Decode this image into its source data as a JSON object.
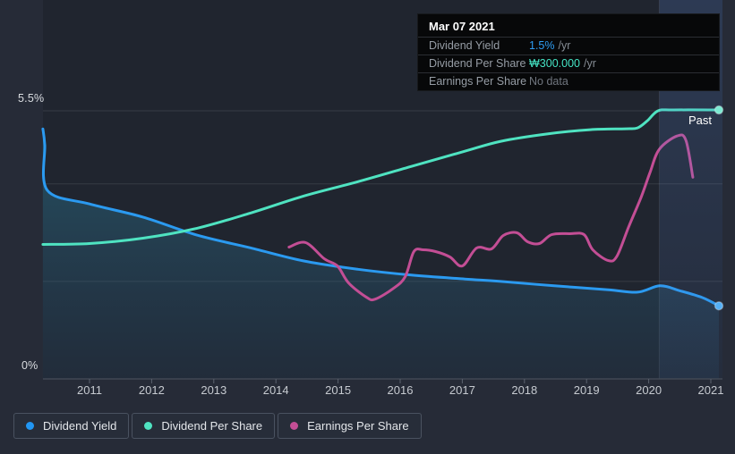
{
  "tooltip": {
    "date": "Mar 07 2021",
    "rows": [
      {
        "label": "Dividend Yield",
        "value": "1.5%",
        "suffix": "/yr",
        "color": "#2e9df3"
      },
      {
        "label": "Dividend Per Share",
        "value": "₩300.000",
        "suffix": "/yr",
        "color": "#45e3c4"
      },
      {
        "label": "Earnings Per Share",
        "value": "No data",
        "suffix": "",
        "color": "#70767f"
      }
    ]
  },
  "axes": {
    "y_top_label": "5.5%",
    "y_bottom_label": "0%",
    "past_label": "Past",
    "years": [
      "2011",
      "2012",
      "2013",
      "2014",
      "2015",
      "2016",
      "2017",
      "2018",
      "2019",
      "2020",
      "2021"
    ]
  },
  "legend": [
    {
      "label": "Dividend Yield",
      "color": "#2196f3"
    },
    {
      "label": "Dividend Per Share",
      "color": "#4fe3c1"
    },
    {
      "label": "Earnings Per Share",
      "color": "#c34e95"
    }
  ],
  "chart_data": {
    "type": "line",
    "title": "Dividend history",
    "x_range": [
      2010.25,
      2021.2
    ],
    "ylim_percent": [
      0,
      5.5
    ],
    "ylim_won": [
      0,
      300
    ],
    "grid": true,
    "gridline_percents": [
      5.5,
      4,
      2
    ],
    "legend_position": "bottom",
    "past_band_start_year": 2020.17,
    "current_date": "Mar 07 2021",
    "current_values": {
      "dividend_yield": "1.5% /yr",
      "dividend_per_share": "₩300.000 /yr",
      "earnings_per_share": "No data"
    },
    "series": [
      {
        "name": "Dividend Yield",
        "unit": "%",
        "color": "#2b9af0",
        "dot_color": "#54b0f6",
        "area_fill": true,
        "has_current_dot": true,
        "points": [
          [
            2010.25,
            5.13
          ],
          [
            2010.28,
            4.8
          ],
          [
            2010.32,
            3.87
          ],
          [
            2011.0,
            3.59
          ],
          [
            2011.86,
            3.32
          ],
          [
            2012.73,
            2.95
          ],
          [
            2013.59,
            2.69
          ],
          [
            2014.45,
            2.42
          ],
          [
            2015.32,
            2.25
          ],
          [
            2016.18,
            2.13
          ],
          [
            2017.04,
            2.05
          ],
          [
            2017.62,
            2.0
          ],
          [
            2018.48,
            1.91
          ],
          [
            2019.35,
            1.83
          ],
          [
            2019.82,
            1.78
          ],
          [
            2020.18,
            1.91
          ],
          [
            2020.5,
            1.81
          ],
          [
            2020.86,
            1.67
          ],
          [
            2021.13,
            1.5
          ]
        ]
      },
      {
        "name": "Dividend Per Share",
        "unit": "₩",
        "color": "#4fe3c1",
        "dot_color": "#7ce9d2",
        "area_fill": false,
        "has_current_dot": true,
        "points": [
          [
            2010.25,
            150
          ],
          [
            2011.0,
            151
          ],
          [
            2011.86,
            157
          ],
          [
            2012.73,
            168
          ],
          [
            2013.59,
            185
          ],
          [
            2014.45,
            204
          ],
          [
            2015.32,
            220
          ],
          [
            2016.18,
            237
          ],
          [
            2017.04,
            254
          ],
          [
            2017.62,
            265
          ],
          [
            2018.34,
            273
          ],
          [
            2019.06,
            278
          ],
          [
            2019.63,
            279
          ],
          [
            2019.82,
            280
          ],
          [
            2019.98,
            288
          ],
          [
            2020.15,
            299
          ],
          [
            2020.4,
            300
          ],
          [
            2021.13,
            300
          ]
        ]
      },
      {
        "name": "Earnings Per Share",
        "unit": "₩",
        "color": "#c34e95",
        "dot_color": "#c34e95",
        "area_fill": false,
        "has_current_dot": false,
        "points": [
          [
            2014.21,
            147
          ],
          [
            2014.48,
            152
          ],
          [
            2014.78,
            134
          ],
          [
            2014.99,
            126
          ],
          [
            2015.17,
            107
          ],
          [
            2015.46,
            91
          ],
          [
            2015.6,
            89
          ],
          [
            2015.89,
            101
          ],
          [
            2016.08,
            114
          ],
          [
            2016.22,
            142
          ],
          [
            2016.37,
            144
          ],
          [
            2016.57,
            142
          ],
          [
            2016.8,
            136
          ],
          [
            2017.0,
            126
          ],
          [
            2017.23,
            146
          ],
          [
            2017.47,
            145
          ],
          [
            2017.66,
            160
          ],
          [
            2017.88,
            163
          ],
          [
            2018.05,
            153
          ],
          [
            2018.24,
            151
          ],
          [
            2018.44,
            161
          ],
          [
            2018.73,
            162
          ],
          [
            2018.96,
            161
          ],
          [
            2019.1,
            144
          ],
          [
            2019.35,
            132
          ],
          [
            2019.49,
            137
          ],
          [
            2019.68,
            170
          ],
          [
            2019.88,
            203
          ],
          [
            2020.02,
            230
          ],
          [
            2020.17,
            256
          ],
          [
            2020.46,
            271
          ],
          [
            2020.6,
            266
          ],
          [
            2020.71,
            225
          ]
        ]
      }
    ]
  }
}
